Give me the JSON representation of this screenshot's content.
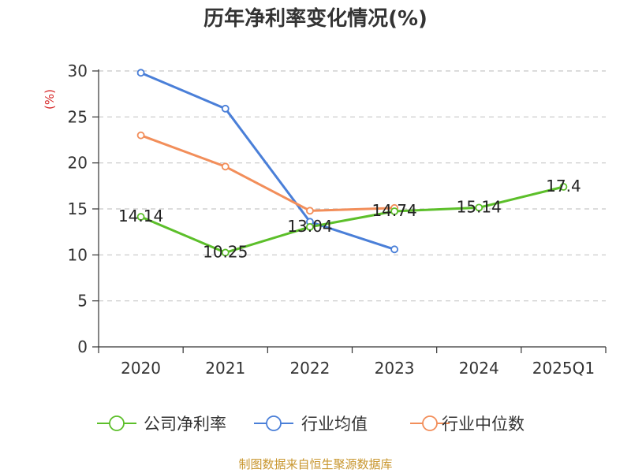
{
  "chart_data": {
    "type": "line",
    "title": "历年净利率变化情况(%)",
    "ylabel": "(%)",
    "categories": [
      "2020",
      "2021",
      "2022",
      "2023",
      "2024",
      "2025Q1"
    ],
    "ylim": [
      0,
      30
    ],
    "yticks": [
      0,
      5,
      10,
      15,
      20,
      25,
      30
    ],
    "grid": true,
    "legend_position": "bottom",
    "series": [
      {
        "name": "公司净利率",
        "color": "#5cbf2a",
        "values": [
          14.14,
          10.25,
          13.04,
          14.74,
          15.14,
          17.4
        ],
        "labels": [
          "14.14",
          "10.25",
          "13.04",
          "14.74",
          "15.14",
          "17.4"
        ]
      },
      {
        "name": "行业均值",
        "color": "#4a7fd8",
        "values": [
          29.8,
          25.9,
          13.6,
          10.6,
          null,
          null
        ]
      },
      {
        "name": "行业中位数",
        "color": "#f28e5a",
        "values": [
          23.0,
          19.6,
          14.8,
          15.1,
          null,
          null
        ]
      }
    ]
  },
  "source": "制图数据来自恒生聚源数据库"
}
